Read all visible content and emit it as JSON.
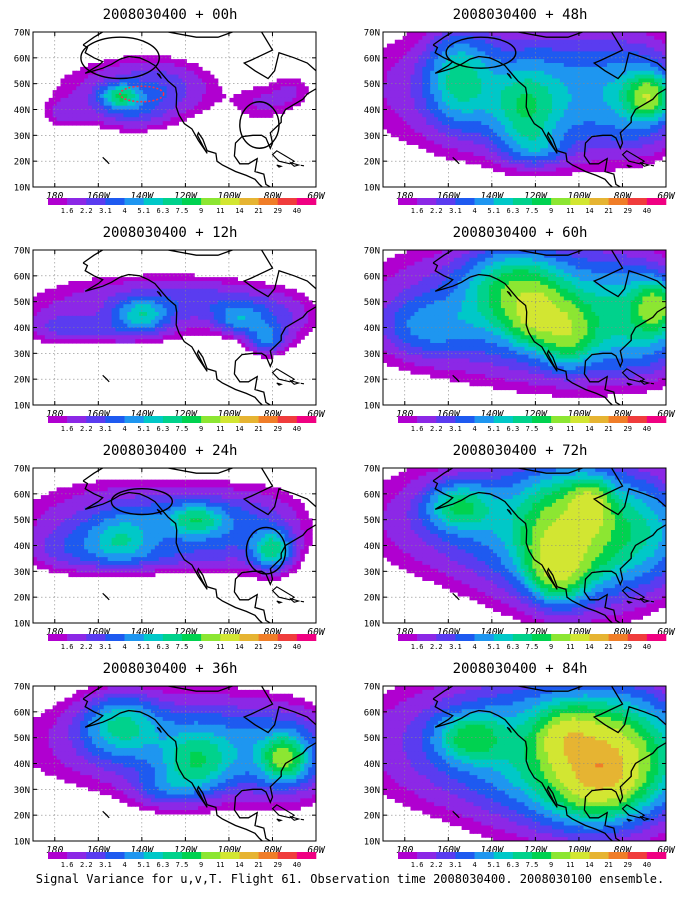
{
  "figure": {
    "caption": "Signal Variance for u,v,T. Flight 61. Observation time 2008030400. 2008030100 ensemble."
  },
  "colorbar": {
    "labels": [
      "1.6",
      "2.2",
      "3.1",
      "4",
      "5.1",
      "6.3",
      "7.5",
      "9",
      "11",
      "14",
      "21",
      "29",
      "40"
    ],
    "colors": [
      "#b000d0",
      "#8c28e6",
      "#5a3cf0",
      "#1e5af0",
      "#1e96f0",
      "#00c8c8",
      "#00d28c",
      "#00d250",
      "#8ce632",
      "#d2e632",
      "#e6b432",
      "#f07d28",
      "#f03c3c",
      "#f00082"
    ]
  },
  "axes": {
    "lon_labels": [
      "180",
      "160W",
      "140W",
      "120W",
      "100W",
      "80W",
      "60W"
    ],
    "lat_labels": [
      "70N",
      "60N",
      "50N",
      "40N",
      "30N",
      "20N",
      "10N"
    ]
  },
  "chart_data": {
    "type": "heatmap",
    "x_range": [
      -190,
      -60
    ],
    "y_range": [
      10,
      70
    ],
    "legend": "bottom (horizontal color bar)",
    "grid": true,
    "panels": [
      {
        "title": "2008030400 + 00h",
        "lead_hours": 0,
        "blobs": [
          [
            -150,
            48,
            30,
            10,
            2.4
          ],
          [
            -130,
            48,
            18,
            9,
            2.0
          ],
          [
            -175,
            38,
            8,
            4,
            1.8
          ],
          [
            -145,
            38,
            12,
            5,
            1.8
          ],
          [
            -85,
            42,
            10,
            6,
            1.9
          ],
          [
            -70,
            48,
            8,
            6,
            1.8
          ],
          [
            -150,
            45,
            6,
            3,
            5.5
          ]
        ],
        "circles": [
          [
            -150,
            60,
            18,
            8
          ],
          [
            -86,
            34,
            9,
            9
          ]
        ],
        "dashed_ellipses": [
          [
            -140,
            46,
            10,
            3
          ]
        ]
      },
      {
        "title": "2008030400 + 12h",
        "lead_hours": 12,
        "blobs": [
          [
            -150,
            50,
            38,
            9,
            2.6
          ],
          [
            -105,
            50,
            25,
            7,
            2.2
          ],
          [
            -75,
            42,
            14,
            8,
            2.3
          ],
          [
            -180,
            40,
            12,
            5,
            1.8
          ],
          [
            -150,
            38,
            20,
            4,
            2.0
          ],
          [
            -140,
            45,
            8,
            4,
            4.5
          ],
          [
            -95,
            43,
            8,
            4,
            3.5
          ],
          [
            -83,
            35,
            6,
            4,
            3.8
          ]
        ],
        "circles": [],
        "dashed_ellipses": []
      },
      {
        "title": "2008030400 + 24h",
        "lead_hours": 24,
        "blobs": [
          [
            -150,
            52,
            40,
            12,
            2.8
          ],
          [
            -120,
            48,
            25,
            8,
            2.5
          ],
          [
            -85,
            45,
            20,
            14,
            2.4
          ],
          [
            -175,
            38,
            15,
            7,
            2.2
          ],
          [
            -135,
            35,
            25,
            5,
            2.0
          ],
          [
            -150,
            42,
            10,
            6,
            3.8
          ],
          [
            -80,
            38,
            6,
            5,
            6.0
          ],
          [
            -115,
            50,
            8,
            4,
            4.2
          ]
        ],
        "circles": [
          [
            -140,
            57,
            14,
            5
          ],
          [
            -83,
            38,
            9,
            9
          ]
        ],
        "dashed_ellipses": []
      },
      {
        "title": "2008030400 + 36h",
        "lead_hours": 36,
        "blobs": [
          [
            -140,
            48,
            50,
            16,
            3.0
          ],
          [
            -100,
            45,
            28,
            14,
            3.2
          ],
          [
            -70,
            42,
            14,
            12,
            3.0
          ],
          [
            -150,
            55,
            12,
            8,
            5.0
          ],
          [
            -115,
            40,
            10,
            8,
            4.2
          ],
          [
            -75,
            42,
            6,
            5,
            7.0
          ],
          [
            -130,
            30,
            10,
            5,
            2.2
          ]
        ],
        "circles": [],
        "dashed_ellipses": []
      },
      {
        "title": "2008030400 + 48h",
        "lead_hours": 48,
        "blobs": [
          [
            -145,
            48,
            50,
            20,
            3.2
          ],
          [
            -100,
            45,
            30,
            18,
            3.5
          ],
          [
            -70,
            45,
            14,
            14,
            3.4
          ],
          [
            -155,
            52,
            10,
            12,
            4.8
          ],
          [
            -125,
            40,
            10,
            10,
            4.2
          ],
          [
            -68,
            45,
            6,
            5,
            8.0
          ],
          [
            -120,
            25,
            10,
            5,
            2.5
          ]
        ],
        "circles": [
          [
            -145,
            62,
            16,
            6
          ]
        ],
        "dashed_ellipses": []
      },
      {
        "title": "2008030400 + 60h",
        "lead_hours": 60,
        "blobs": [
          [
            -140,
            48,
            52,
            20,
            3.6
          ],
          [
            -100,
            45,
            32,
            18,
            4.0
          ],
          [
            -70,
            42,
            16,
            14,
            3.8
          ],
          [
            -130,
            55,
            14,
            10,
            5.5
          ],
          [
            -120,
            45,
            8,
            7,
            7.5
          ],
          [
            -105,
            38,
            8,
            8,
            6.8
          ],
          [
            -65,
            48,
            6,
            6,
            7.0
          ],
          [
            -170,
            40,
            14,
            8,
            2.8
          ]
        ],
        "circles": [],
        "dashed_ellipses": []
      },
      {
        "title": "2008030400 + 72h",
        "lead_hours": 72,
        "blobs": [
          [
            -140,
            50,
            50,
            18,
            3.5
          ],
          [
            -100,
            42,
            32,
            22,
            4.5
          ],
          [
            -70,
            45,
            16,
            14,
            3.5
          ],
          [
            -105,
            45,
            14,
            14,
            7.0
          ],
          [
            -110,
            32,
            8,
            8,
            8.5
          ],
          [
            -95,
            55,
            6,
            6,
            8.0
          ],
          [
            -155,
            55,
            10,
            6,
            5.5
          ]
        ],
        "circles": [],
        "dashed_ellipses": []
      },
      {
        "title": "2008030400 + 84h",
        "lead_hours": 84,
        "blobs": [
          [
            -140,
            48,
            52,
            20,
            3.8
          ],
          [
            -100,
            42,
            34,
            22,
            4.8
          ],
          [
            -70,
            42,
            18,
            16,
            4.0
          ],
          [
            -95,
            40,
            16,
            14,
            8.0
          ],
          [
            -90,
            38,
            10,
            8,
            12.5
          ],
          [
            -150,
            50,
            10,
            6,
            5.5
          ],
          [
            -105,
            50,
            8,
            6,
            7.5
          ]
        ],
        "circles": [],
        "dashed_ellipses": []
      }
    ]
  }
}
